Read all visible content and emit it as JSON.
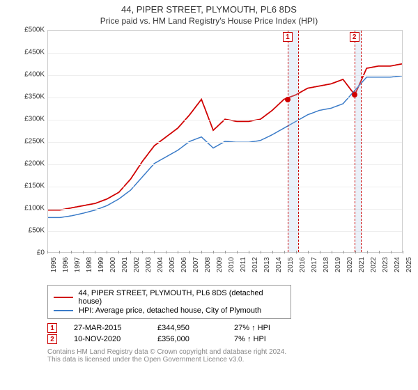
{
  "title": "44, PIPER STREET, PLYMOUTH, PL6 8DS",
  "subtitle": "Price paid vs. HM Land Registry's House Price Index (HPI)",
  "chart": {
    "type": "line",
    "xlim": [
      1995,
      2025
    ],
    "ylim": [
      0,
      500000
    ],
    "ytick_step": 50000,
    "y_prefix": "£",
    "y_suffix": "K",
    "grid_color": "#eeeeee",
    "border_color": "#cccccc",
    "background_color": "#ffffff",
    "x_years": [
      1995,
      1996,
      1997,
      1998,
      1999,
      2000,
      2001,
      2002,
      2003,
      2004,
      2005,
      2006,
      2007,
      2008,
      2009,
      2010,
      2011,
      2012,
      2013,
      2014,
      2015,
      2016,
      2017,
      2018,
      2019,
      2020,
      2021,
      2022,
      2023,
      2024,
      2025
    ],
    "series": [
      {
        "name": "property",
        "label": "44, PIPER STREET, PLYMOUTH, PL6 8DS (detached house)",
        "color": "#d00000",
        "line_width": 1.8,
        "values": [
          95000,
          95000,
          100000,
          105000,
          110000,
          120000,
          135000,
          165000,
          205000,
          240000,
          260000,
          280000,
          310000,
          345000,
          275000,
          300000,
          295000,
          295000,
          300000,
          320000,
          345000,
          355000,
          370000,
          375000,
          380000,
          390000,
          355000,
          415000,
          420000,
          420000,
          425000
        ]
      },
      {
        "name": "hpi",
        "label": "HPI: Average price, detached house, City of Plymouth",
        "color": "#3a7bc8",
        "line_width": 1.5,
        "values": [
          78000,
          78000,
          82000,
          88000,
          95000,
          105000,
          120000,
          140000,
          170000,
          200000,
          215000,
          230000,
          250000,
          260000,
          235000,
          250000,
          248000,
          248000,
          252000,
          265000,
          280000,
          295000,
          310000,
          320000,
          325000,
          335000,
          365000,
          395000,
          395000,
          395000,
          398000
        ]
      }
    ],
    "events": [
      {
        "num": "1",
        "year": 2015.23,
        "band_end": 2016.2,
        "marker_y": 344950,
        "marker_color": "#d00000"
      },
      {
        "num": "2",
        "year": 2020.86,
        "band_end": 2021.5,
        "marker_y": 356000,
        "marker_color": "#d00000"
      }
    ],
    "x_label_fontsize": 10,
    "y_label_fontsize": 10
  },
  "legend": {
    "items": [
      {
        "color": "#d00000",
        "label": "44, PIPER STREET, PLYMOUTH, PL6 8DS (detached house)"
      },
      {
        "color": "#3a7bc8",
        "label": "HPI: Average price, detached house, City of Plymouth"
      }
    ]
  },
  "events_table": [
    {
      "num": "1",
      "date": "27-MAR-2015",
      "price": "£344,950",
      "pct": "27% ↑ HPI"
    },
    {
      "num": "2",
      "date": "10-NOV-2020",
      "price": "£356,000",
      "pct": "7% ↑ HPI"
    }
  ],
  "footer": {
    "line1": "Contains HM Land Registry data © Crown copyright and database right 2024.",
    "line2": "This data is licensed under the Open Government Licence v3.0."
  }
}
